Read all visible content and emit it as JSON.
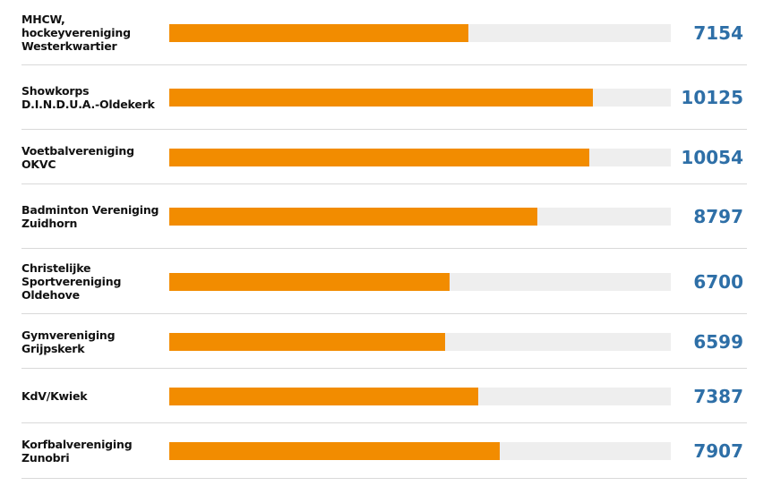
{
  "chart_data": {
    "type": "bar",
    "orientation": "horizontal",
    "categories": [
      "MHCW, hockeyvereniging Westerkwartier",
      "Showkorps D.I.N.D.U.A.-Oldekerk",
      "Voetbalvereniging OKVC",
      "Badminton Vereniging Zuidhorn",
      "Christelijke Sportvereniging Oldehove",
      "Gymvereniging Grijpskerk",
      "KdV/Kwiek",
      "Korfbalvereniging Zunobri"
    ],
    "values": [
      7154,
      10125,
      10054,
      8797,
      6700,
      6599,
      7387,
      7907
    ],
    "value_labels": [
      "7154",
      "10125",
      "10054",
      "8797",
      "6700",
      "6599",
      "7387",
      "7907"
    ],
    "xlim": [
      0,
      12000
    ],
    "title": "",
    "xlabel": "",
    "ylabel": "",
    "grid": false,
    "legend": "none"
  },
  "colors": {
    "bar": "#f28c00",
    "track": "#eeeeee",
    "value_text": "#2e6fa7",
    "label_text": "#111111",
    "divider": "#d9d9d9"
  }
}
